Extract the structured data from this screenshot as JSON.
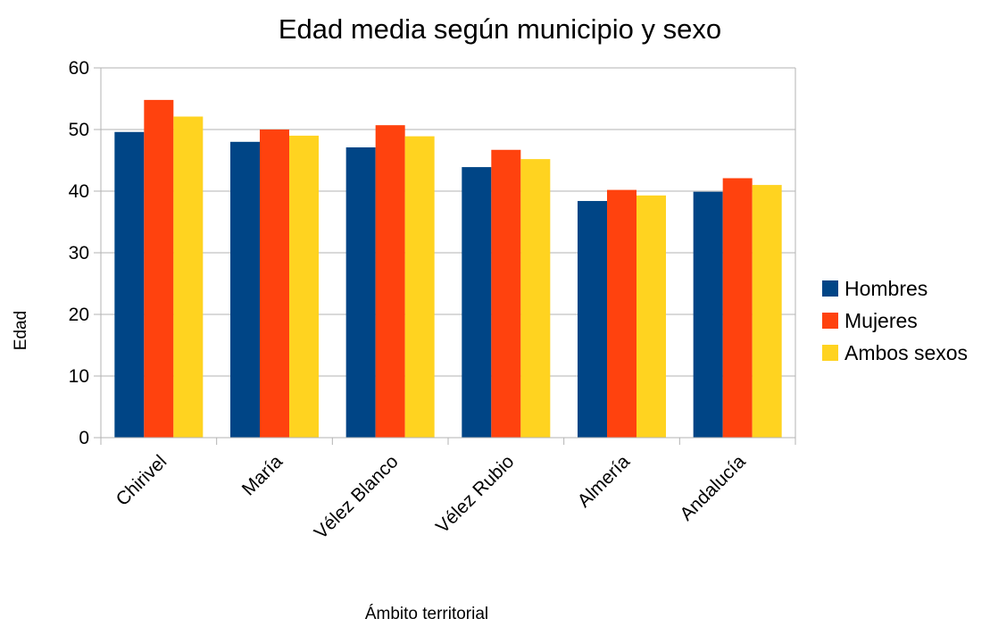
{
  "chart_data": {
    "type": "bar",
    "title": "Edad media según municipio y sexo",
    "xlabel": "Ámbito territorial",
    "ylabel": "Edad",
    "ylim": [
      0,
      60
    ],
    "yticks": [
      0,
      10,
      20,
      30,
      40,
      50,
      60
    ],
    "grid": true,
    "legend_position": "right",
    "categories": [
      "Chirivel",
      "María",
      "Vélez Blanco",
      "Vélez Rubio",
      "Almería",
      "Andalucía"
    ],
    "series": [
      {
        "name": "Hombres",
        "color": "#004586",
        "values": [
          49.6,
          48.0,
          47.1,
          43.9,
          38.4,
          39.9
        ]
      },
      {
        "name": "Mujeres",
        "color": "#ff420e",
        "values": [
          54.8,
          50.0,
          50.7,
          46.7,
          40.2,
          42.1
        ]
      },
      {
        "name": "Ambos sexos",
        "color": "#ffd320",
        "values": [
          52.1,
          49.0,
          48.9,
          45.2,
          39.3,
          41.0
        ]
      }
    ]
  }
}
